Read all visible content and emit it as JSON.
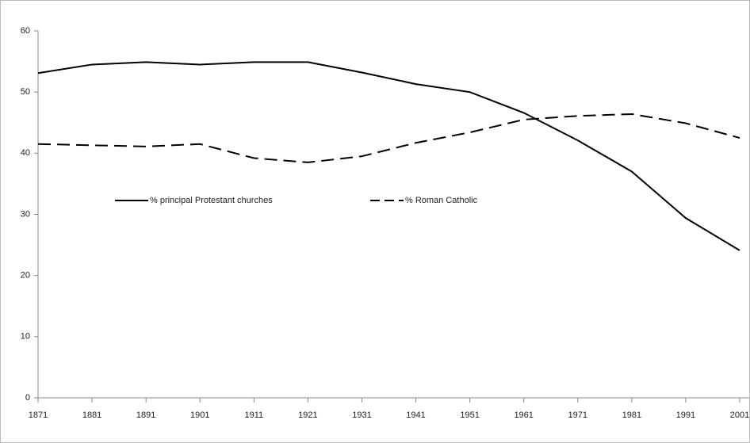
{
  "chart_data": {
    "type": "line",
    "x": [
      1871,
      1881,
      1891,
      1901,
      1911,
      1921,
      1931,
      1941,
      1951,
      1961,
      1971,
      1981,
      1991,
      2001
    ],
    "series": [
      {
        "name": "% principal Protestant churches",
        "color": "#000000",
        "line_style": "solid",
        "values": [
          53.1,
          54.5,
          54.9,
          54.5,
          54.9,
          54.9,
          53.2,
          51.3,
          50.0,
          46.6,
          42.1,
          37.0,
          29.4,
          24.1
        ]
      },
      {
        "name": "% Roman Catholic",
        "color": "#000000",
        "line_style": "dashed",
        "values": [
          41.5,
          41.3,
          41.1,
          41.5,
          39.2,
          38.5,
          39.5,
          41.7,
          43.4,
          45.5,
          46.1,
          46.4,
          44.9,
          42.5
        ]
      }
    ],
    "xlim": [
      1871,
      2001
    ],
    "xticks": [
      1871,
      1881,
      1891,
      1901,
      1911,
      1921,
      1931,
      1941,
      1951,
      1961,
      1971,
      1981,
      1991,
      2001
    ],
    "ylim": [
      0,
      60
    ],
    "yticks": [
      0,
      10,
      20,
      30,
      40,
      50,
      60
    ],
    "grid": false,
    "legend": "inside-upper-left"
  }
}
